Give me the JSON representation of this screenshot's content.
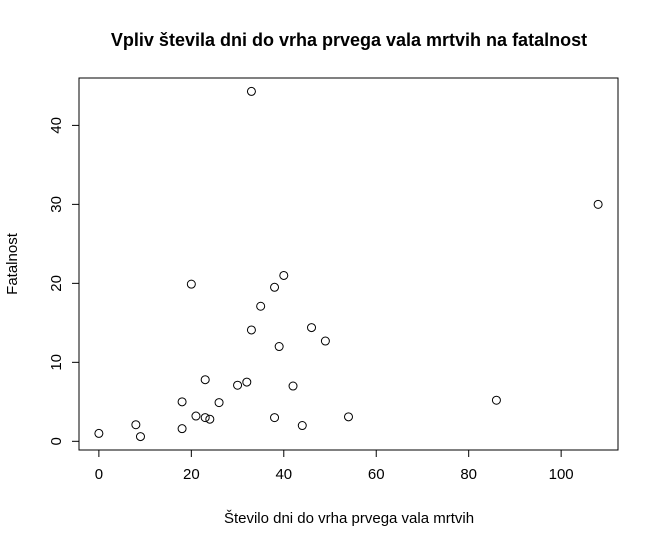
{
  "chart_data": {
    "type": "scatter",
    "title": "Vpliv števila dni do vrha prvega vala mrtvih na fatalnost",
    "xlabel": "Število dni do vrha prvega vala mrtvih",
    "ylabel": "Fatalnost",
    "xlim": [
      -4.3,
      112.3
    ],
    "ylim": [
      -1.1,
      46.0
    ],
    "x_ticks": [
      0,
      20,
      40,
      60,
      80,
      100
    ],
    "y_ticks": [
      0,
      10,
      20,
      30,
      40
    ],
    "x_tick_labels": [
      "0",
      "20",
      "40",
      "60",
      "80",
      "100"
    ],
    "y_tick_labels": [
      "0",
      "10",
      "20",
      "30",
      "40"
    ],
    "grid": false,
    "marker": "open-circle",
    "points": [
      {
        "x": 0,
        "y": 1.0
      },
      {
        "x": 8,
        "y": 2.1
      },
      {
        "x": 9,
        "y": 0.6
      },
      {
        "x": 18,
        "y": 1.6
      },
      {
        "x": 18,
        "y": 5.0
      },
      {
        "x": 20,
        "y": 19.9
      },
      {
        "x": 21,
        "y": 3.2
      },
      {
        "x": 23,
        "y": 3.0
      },
      {
        "x": 23,
        "y": 7.8
      },
      {
        "x": 24,
        "y": 2.8
      },
      {
        "x": 26,
        "y": 4.9
      },
      {
        "x": 30,
        "y": 7.1
      },
      {
        "x": 32,
        "y": 7.5
      },
      {
        "x": 33,
        "y": 14.1
      },
      {
        "x": 33,
        "y": 44.3
      },
      {
        "x": 35,
        "y": 17.1
      },
      {
        "x": 38,
        "y": 3.0
      },
      {
        "x": 38,
        "y": 19.5
      },
      {
        "x": 39,
        "y": 12.0
      },
      {
        "x": 40,
        "y": 21.0
      },
      {
        "x": 42,
        "y": 7.0
      },
      {
        "x": 44,
        "y": 2.0
      },
      {
        "x": 46,
        "y": 14.4
      },
      {
        "x": 49,
        "y": 12.7
      },
      {
        "x": 54,
        "y": 3.1
      },
      {
        "x": 86,
        "y": 5.2
      },
      {
        "x": 108,
        "y": 30.0
      }
    ]
  }
}
